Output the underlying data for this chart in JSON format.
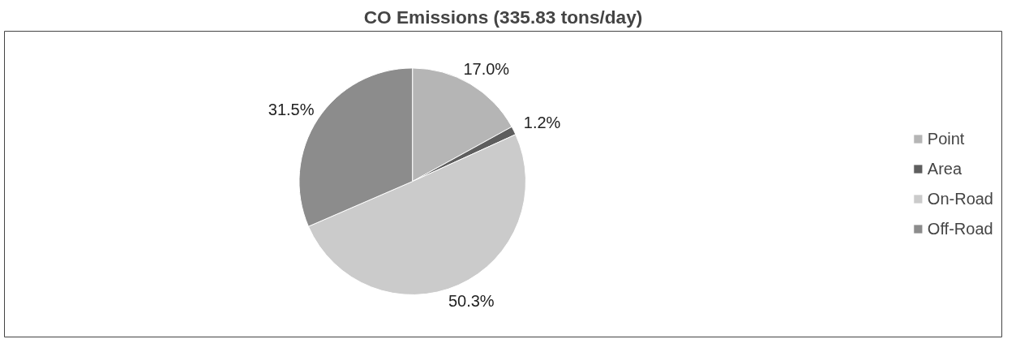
{
  "chart_data": {
    "type": "pie",
    "title": "CO Emissions (335.83 tons/day)",
    "categories": [
      "Point",
      "Area",
      "On-Road",
      "Off-Road"
    ],
    "values": [
      17.0,
      1.2,
      50.3,
      31.5
    ],
    "colors": [
      "#b5b5b5",
      "#5e5e5e",
      "#cbcbcb",
      "#8c8c8c"
    ],
    "value_labels": [
      "17.0%",
      "1.2%",
      "50.3%",
      "31.5%"
    ],
    "legend": "right"
  }
}
